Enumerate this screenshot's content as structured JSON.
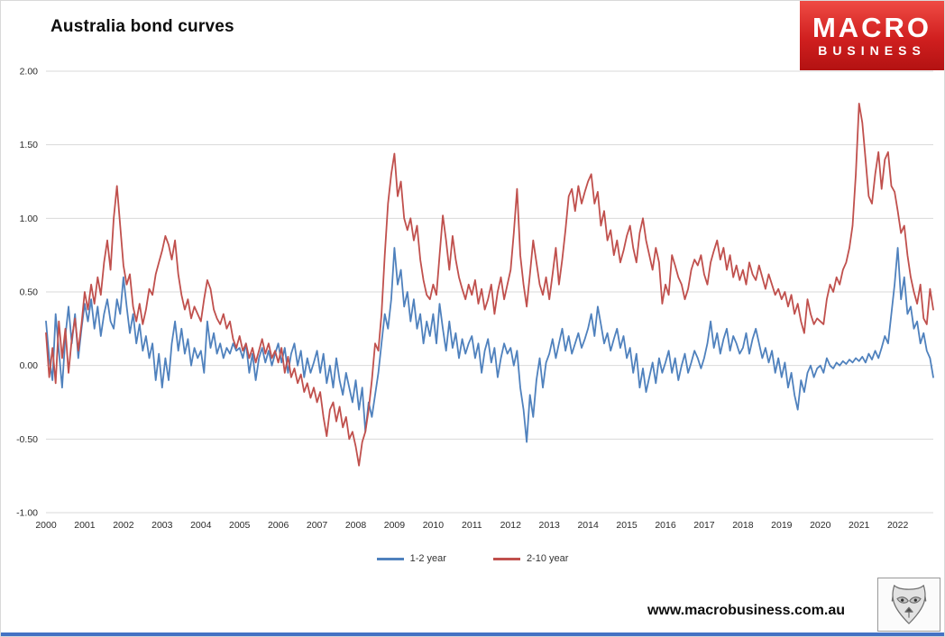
{
  "page": {
    "title": "Australia bond curves",
    "website": "www.macrobusiness.com.au",
    "logo": {
      "line1": "MACRO",
      "line2": "BUSINESS"
    },
    "wolf_icon": "wolf-logo",
    "colors": {
      "logo_red": "#c41818",
      "bottom_bar_blue": "#4472c4",
      "gridline_gray": "#d9d9d9",
      "axis_text": "#2b2b2b"
    }
  },
  "legend": [
    {
      "label": "1-2 year",
      "color": "#4f81bd"
    },
    {
      "label": "2-10 year",
      "color": "#c0504d"
    }
  ],
  "chart_data": {
    "type": "line",
    "title": "Australia bond curves",
    "xlabel": "",
    "ylabel": "",
    "x_unit": "monthly, Jan 2000 - Dec 2022",
    "grid": true,
    "legend_position": "bottom",
    "ylim": [
      -1.0,
      2.0
    ],
    "y_ticks": [
      2.0,
      1.5,
      1.0,
      0.5,
      0.0,
      -0.5,
      -1.0
    ],
    "y_tick_labels": [
      "2.00",
      "1.50",
      "1.00",
      "0.50",
      "0.00",
      "-0.50",
      "-1.00"
    ],
    "x_tick_labels": [
      "2000",
      "2001",
      "2002",
      "2003",
      "2004",
      "2005",
      "2006",
      "2007",
      "2008",
      "2009",
      "2010",
      "2011",
      "2012",
      "2013",
      "2014",
      "2015",
      "2016",
      "2017",
      "2018",
      "2019",
      "2020",
      "2021",
      "2022"
    ],
    "months_per_tick": 12,
    "series": [
      {
        "name": "1-2 year",
        "color": "#4f81bd",
        "values": [
          0.3,
          0.05,
          -0.1,
          0.35,
          0.1,
          -0.15,
          0.2,
          0.4,
          0.15,
          0.35,
          0.05,
          0.25,
          0.42,
          0.3,
          0.45,
          0.25,
          0.4,
          0.2,
          0.35,
          0.45,
          0.3,
          0.25,
          0.45,
          0.35,
          0.6,
          0.4,
          0.22,
          0.35,
          0.15,
          0.28,
          0.1,
          0.2,
          0.05,
          0.15,
          -0.1,
          0.08,
          -0.15,
          0.05,
          -0.1,
          0.15,
          0.3,
          0.1,
          0.25,
          0.08,
          0.18,
          0.0,
          0.12,
          0.05,
          0.1,
          -0.05,
          0.3,
          0.12,
          0.22,
          0.08,
          0.15,
          0.05,
          0.12,
          0.08,
          0.15,
          0.1,
          0.12,
          0.05,
          0.15,
          -0.05,
          0.08,
          -0.1,
          0.05,
          0.12,
          0.02,
          0.1,
          0.0,
          0.08,
          0.15,
          0.02,
          0.12,
          -0.05,
          0.08,
          0.15,
          0.0,
          0.1,
          -0.08,
          0.05,
          -0.05,
          0.02,
          0.1,
          -0.05,
          0.08,
          -0.12,
          0.0,
          -0.15,
          0.05,
          -0.1,
          -0.2,
          -0.05,
          -0.15,
          -0.25,
          -0.1,
          -0.3,
          -0.15,
          -0.45,
          -0.25,
          -0.35,
          -0.2,
          -0.05,
          0.15,
          0.35,
          0.25,
          0.45,
          0.8,
          0.55,
          0.65,
          0.4,
          0.5,
          0.3,
          0.45,
          0.25,
          0.35,
          0.15,
          0.3,
          0.2,
          0.35,
          0.15,
          0.42,
          0.25,
          0.1,
          0.3,
          0.12,
          0.22,
          0.05,
          0.18,
          0.08,
          0.15,
          0.2,
          0.05,
          0.15,
          -0.05,
          0.1,
          0.18,
          0.02,
          0.12,
          -0.08,
          0.05,
          0.15,
          0.08,
          0.12,
          0.0,
          0.1,
          -0.15,
          -0.3,
          -0.52,
          -0.2,
          -0.35,
          -0.1,
          0.05,
          -0.15,
          0.02,
          0.08,
          0.18,
          0.05,
          0.15,
          0.25,
          0.1,
          0.2,
          0.08,
          0.15,
          0.22,
          0.12,
          0.18,
          0.25,
          0.35,
          0.2,
          0.4,
          0.28,
          0.15,
          0.22,
          0.1,
          0.18,
          0.25,
          0.12,
          0.2,
          0.05,
          0.12,
          -0.05,
          0.08,
          -0.15,
          -0.02,
          -0.18,
          -0.08,
          0.02,
          -0.12,
          0.05,
          -0.05,
          0.02,
          0.1,
          -0.05,
          0.05,
          -0.1,
          0.0,
          0.08,
          -0.05,
          0.02,
          0.1,
          0.05,
          -0.02,
          0.05,
          0.15,
          0.3,
          0.12,
          0.22,
          0.08,
          0.18,
          0.25,
          0.1,
          0.2,
          0.15,
          0.08,
          0.12,
          0.22,
          0.08,
          0.18,
          0.25,
          0.15,
          0.05,
          0.12,
          0.02,
          0.1,
          -0.05,
          0.05,
          -0.08,
          0.02,
          -0.15,
          -0.05,
          -0.2,
          -0.3,
          -0.1,
          -0.18,
          -0.05,
          0.0,
          -0.08,
          -0.02,
          0.0,
          -0.05,
          0.05,
          0.0,
          -0.02,
          0.02,
          0.0,
          0.03,
          0.01,
          0.04,
          0.02,
          0.05,
          0.03,
          0.06,
          0.02,
          0.08,
          0.04,
          0.1,
          0.05,
          0.12,
          0.2,
          0.15,
          0.35,
          0.55,
          0.8,
          0.45,
          0.6,
          0.35,
          0.4,
          0.25,
          0.3,
          0.15,
          0.22,
          0.1,
          0.05,
          -0.08
        ]
      },
      {
        "name": "2-10 year",
        "color": "#c0504d",
        "values": [
          0.22,
          -0.08,
          0.12,
          -0.12,
          0.3,
          0.05,
          0.25,
          -0.05,
          0.18,
          0.32,
          0.1,
          0.28,
          0.5,
          0.38,
          0.55,
          0.42,
          0.6,
          0.48,
          0.7,
          0.85,
          0.65,
          1.0,
          1.22,
          0.95,
          0.68,
          0.55,
          0.62,
          0.4,
          0.3,
          0.42,
          0.28,
          0.38,
          0.52,
          0.48,
          0.62,
          0.7,
          0.78,
          0.88,
          0.82,
          0.72,
          0.85,
          0.62,
          0.48,
          0.38,
          0.45,
          0.32,
          0.4,
          0.35,
          0.3,
          0.45,
          0.58,
          0.52,
          0.38,
          0.32,
          0.28,
          0.35,
          0.25,
          0.3,
          0.18,
          0.12,
          0.2,
          0.1,
          0.15,
          0.05,
          0.12,
          0.02,
          0.1,
          0.18,
          0.08,
          0.15,
          0.05,
          0.1,
          0.02,
          0.12,
          -0.05,
          0.06,
          -0.08,
          -0.02,
          -0.12,
          -0.06,
          -0.18,
          -0.12,
          -0.22,
          -0.15,
          -0.25,
          -0.18,
          -0.35,
          -0.48,
          -0.3,
          -0.25,
          -0.38,
          -0.28,
          -0.42,
          -0.35,
          -0.5,
          -0.45,
          -0.55,
          -0.68,
          -0.52,
          -0.45,
          -0.3,
          -0.1,
          0.15,
          0.1,
          0.35,
          0.75,
          1.1,
          1.3,
          1.44,
          1.15,
          1.25,
          1.0,
          0.92,
          1.0,
          0.85,
          0.95,
          0.72,
          0.58,
          0.48,
          0.45,
          0.55,
          0.48,
          0.75,
          1.02,
          0.85,
          0.65,
          0.88,
          0.72,
          0.6,
          0.52,
          0.45,
          0.55,
          0.48,
          0.58,
          0.42,
          0.52,
          0.38,
          0.45,
          0.55,
          0.35,
          0.5,
          0.6,
          0.45,
          0.55,
          0.65,
          0.9,
          1.2,
          0.75,
          0.55,
          0.4,
          0.62,
          0.85,
          0.7,
          0.55,
          0.48,
          0.6,
          0.45,
          0.62,
          0.8,
          0.55,
          0.72,
          0.92,
          1.15,
          1.2,
          1.05,
          1.22,
          1.1,
          1.18,
          1.25,
          1.3,
          1.1,
          1.18,
          0.95,
          1.05,
          0.85,
          0.92,
          0.75,
          0.85,
          0.7,
          0.78,
          0.88,
          0.95,
          0.8,
          0.7,
          0.9,
          1.0,
          0.85,
          0.75,
          0.65,
          0.8,
          0.7,
          0.42,
          0.55,
          0.48,
          0.75,
          0.68,
          0.6,
          0.55,
          0.45,
          0.52,
          0.65,
          0.72,
          0.68,
          0.75,
          0.62,
          0.55,
          0.7,
          0.78,
          0.85,
          0.72,
          0.8,
          0.65,
          0.75,
          0.6,
          0.68,
          0.58,
          0.65,
          0.55,
          0.7,
          0.62,
          0.58,
          0.68,
          0.6,
          0.52,
          0.62,
          0.55,
          0.48,
          0.52,
          0.45,
          0.5,
          0.4,
          0.48,
          0.35,
          0.42,
          0.3,
          0.22,
          0.45,
          0.35,
          0.28,
          0.32,
          0.3,
          0.28,
          0.45,
          0.55,
          0.5,
          0.6,
          0.55,
          0.65,
          0.7,
          0.8,
          0.95,
          1.3,
          1.78,
          1.65,
          1.4,
          1.15,
          1.1,
          1.3,
          1.45,
          1.2,
          1.4,
          1.45,
          1.22,
          1.18,
          1.05,
          0.9,
          0.95,
          0.75,
          0.6,
          0.5,
          0.42,
          0.55,
          0.32,
          0.28,
          0.52,
          0.38
        ]
      }
    ]
  }
}
